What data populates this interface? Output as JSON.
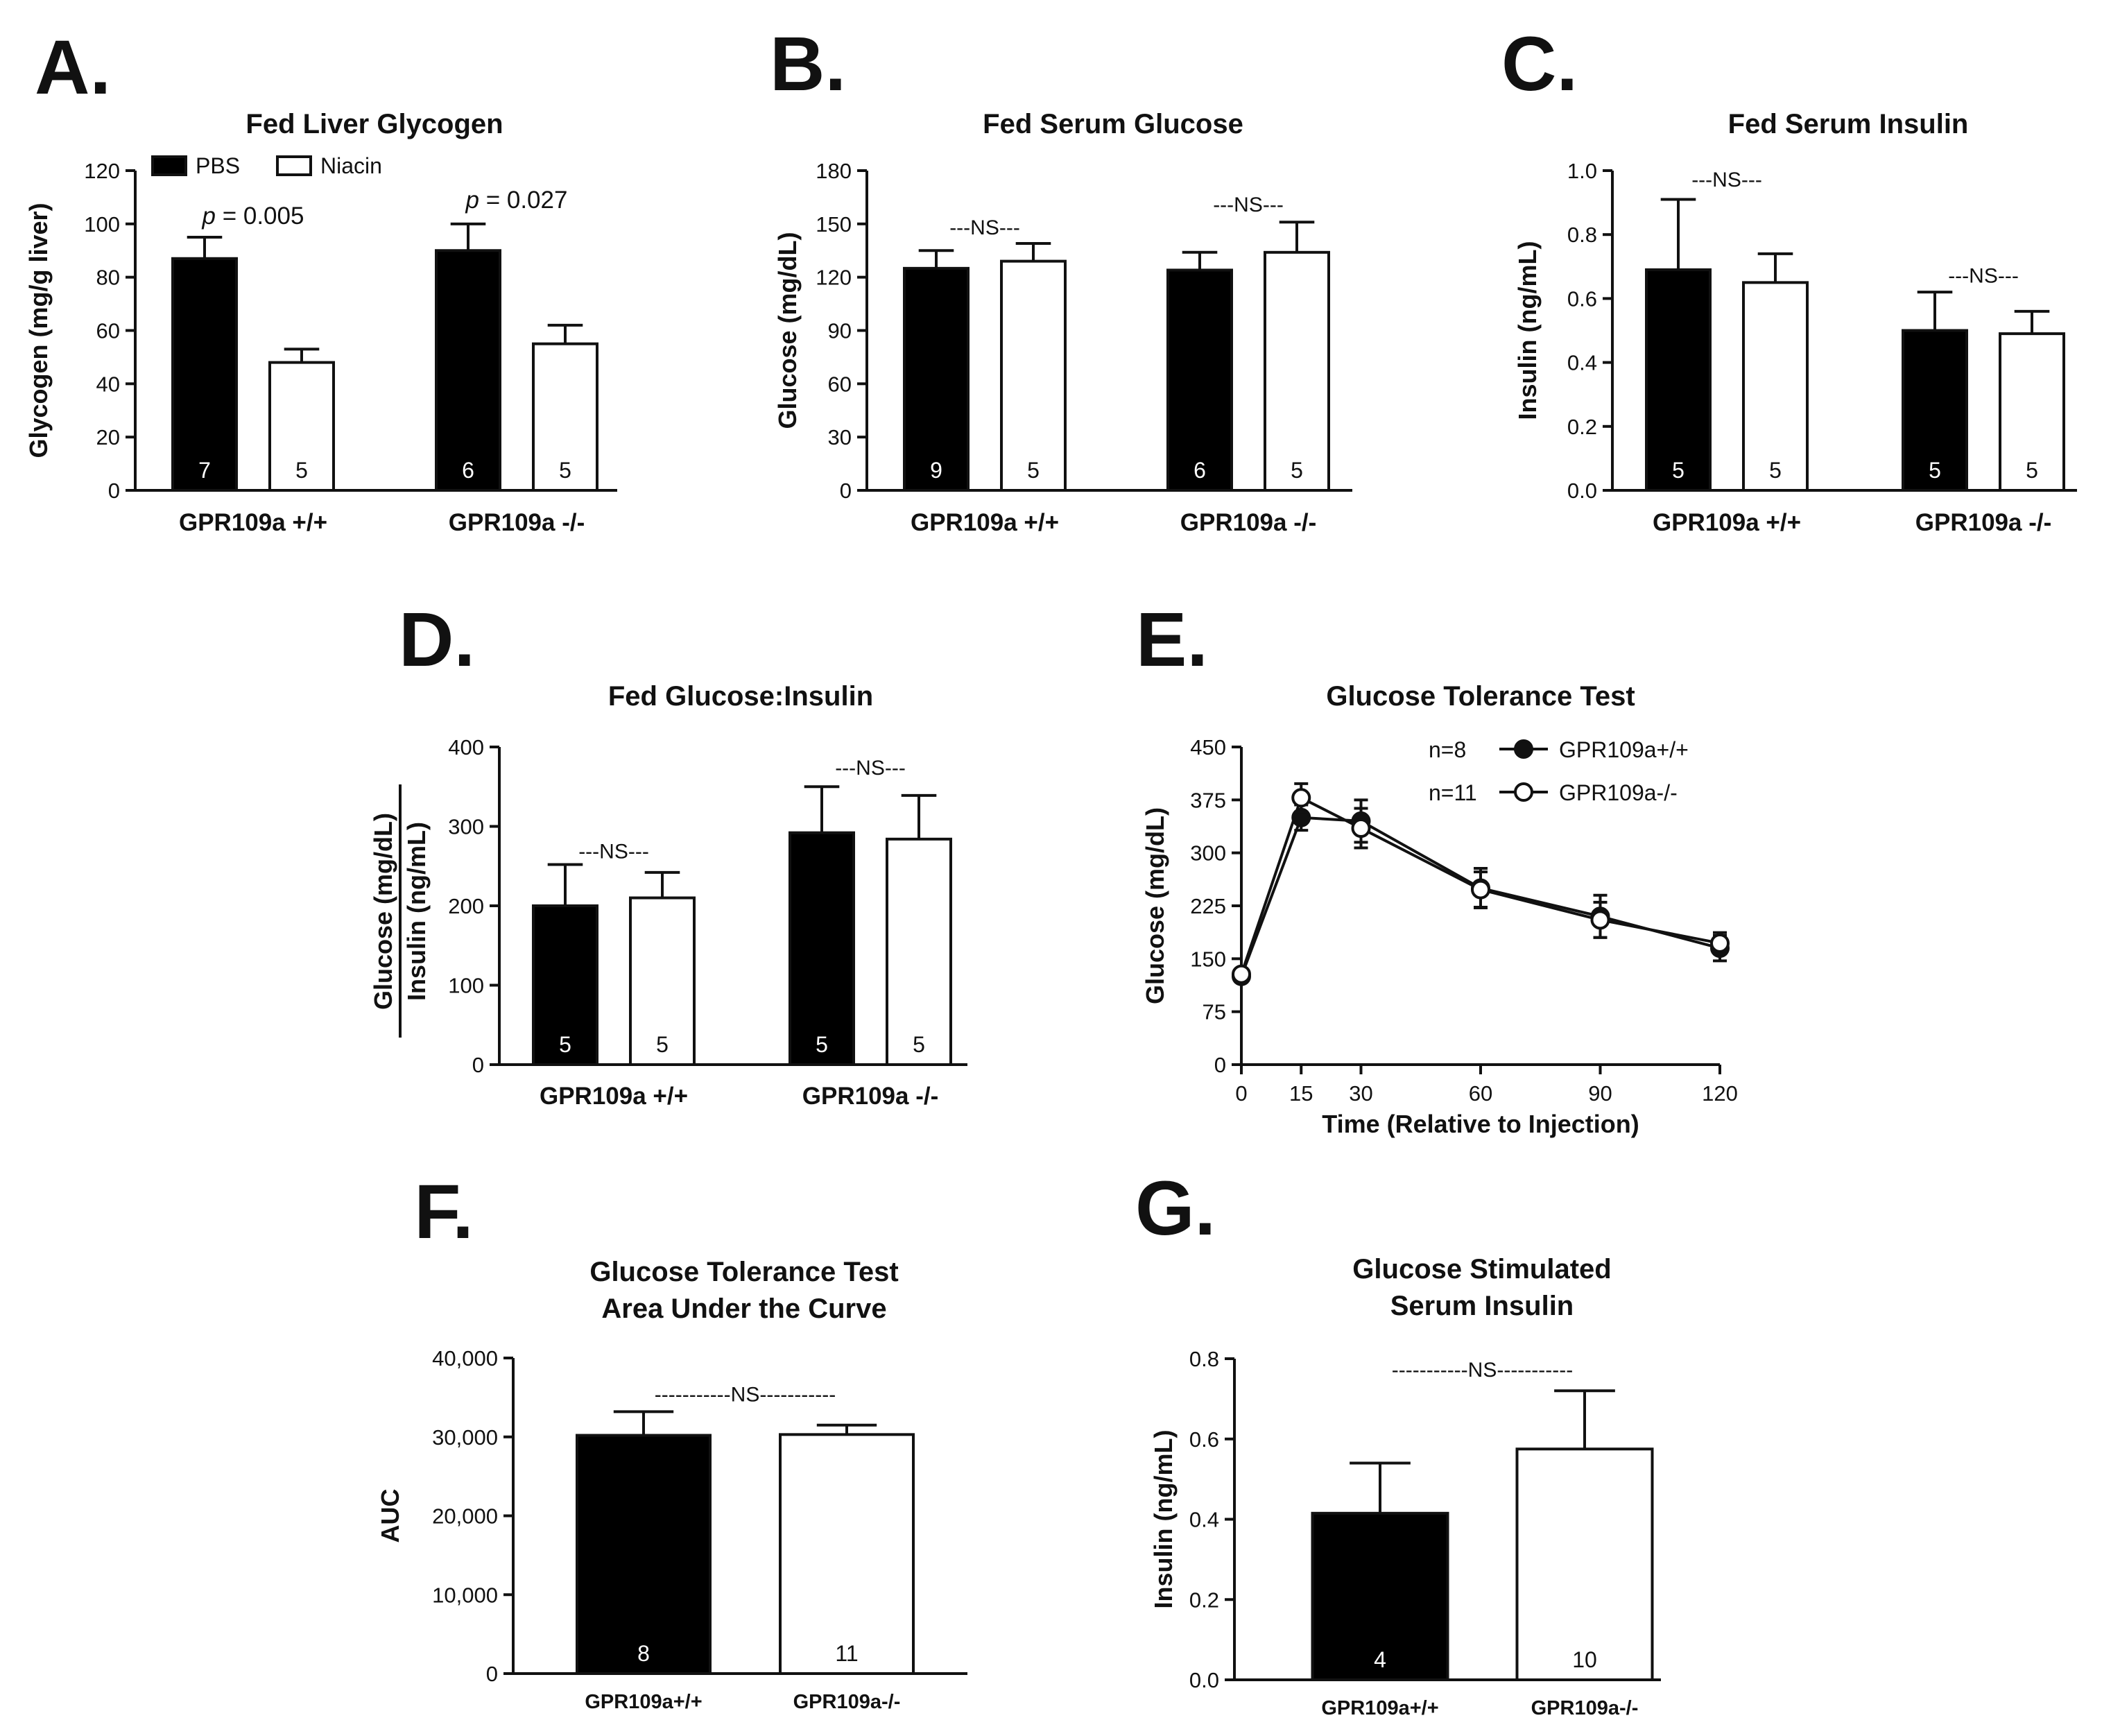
{
  "figure": {
    "letters": [
      "A.",
      "B.",
      "C.",
      "D.",
      "E.",
      "F.",
      "G."
    ]
  },
  "chart_data": [
    {
      "panel": "A.",
      "type": "bar",
      "title": "Fed Liver Glycogen",
      "ylabel": "Glycogen (mg/g liver)",
      "ylim": [
        0,
        120
      ],
      "yticks": [
        "0",
        "20",
        "40",
        "60",
        "80",
        "100",
        "120"
      ],
      "categories": [
        "GPR109a +/+",
        "GPR109a -/-"
      ],
      "legend": {
        "placement": "top-left",
        "entries": [
          {
            "name": "PBS",
            "fill": "#000000"
          },
          {
            "name": "Niacin",
            "fill": "#ffffff"
          }
        ]
      },
      "series": [
        {
          "name": "PBS",
          "fill": "#000000",
          "values": [
            87,
            90
          ],
          "errors": [
            8,
            10
          ],
          "n": [
            "7",
            "6"
          ]
        },
        {
          "name": "Niacin",
          "fill": "#ffffff",
          "values": [
            48,
            55
          ],
          "errors": [
            5,
            7
          ],
          "n": [
            "5",
            "5"
          ]
        }
      ],
      "annotations": [
        {
          "category": 0,
          "italic": "p",
          "text": " = 0.005",
          "y": 100
        },
        {
          "category": 1,
          "italic": "p",
          "text": " = 0.027",
          "y": 106
        }
      ]
    },
    {
      "panel": "B.",
      "type": "bar",
      "title": "Fed Serum Glucose",
      "ylabel": "Glucose (mg/dL)",
      "ylim": [
        0,
        180
      ],
      "yticks": [
        "0",
        "30",
        "60",
        "90",
        "120",
        "150",
        "180"
      ],
      "categories": [
        "GPR109a +/+",
        "GPR109a -/-"
      ],
      "series": [
        {
          "name": "PBS",
          "fill": "#000000",
          "values": [
            125,
            124
          ],
          "errors": [
            10,
            10
          ],
          "n": [
            "9",
            "6"
          ]
        },
        {
          "name": "Niacin",
          "fill": "#ffffff",
          "values": [
            129,
            134
          ],
          "errors": [
            10,
            17
          ],
          "n": [
            "5",
            "5"
          ]
        }
      ],
      "annotations": [
        {
          "category": 0,
          "text": "---NS---",
          "y": 144
        },
        {
          "category": 1,
          "text": "---NS---",
          "y": 157
        }
      ]
    },
    {
      "panel": "C.",
      "type": "bar",
      "title": "Fed Serum Insulin",
      "ylabel": "Insulin (ng/mL)",
      "ylim": [
        0,
        1.0
      ],
      "yticks": [
        "0.0",
        "0.2",
        "0.4",
        "0.6",
        "0.8",
        "1.0"
      ],
      "categories": [
        "GPR109a +/+",
        "GPR109a -/-"
      ],
      "series": [
        {
          "name": "PBS",
          "fill": "#000000",
          "values": [
            0.69,
            0.5
          ],
          "errors": [
            0.22,
            0.12
          ],
          "n": [
            "5",
            "5"
          ]
        },
        {
          "name": "Niacin",
          "fill": "#ffffff",
          "values": [
            0.65,
            0.49
          ],
          "errors": [
            0.09,
            0.07
          ],
          "n": [
            "5",
            "5"
          ]
        }
      ],
      "annotations": [
        {
          "category": 0,
          "text": "---NS---",
          "y": 0.95
        },
        {
          "category": 1,
          "text": "---NS---",
          "y": 0.65
        }
      ]
    },
    {
      "panel": "D.",
      "type": "bar",
      "title": "Fed Glucose:Insulin",
      "ylabel_num": "Glucose (mg/dL)",
      "ylabel_den": "Insulin (ng/mL)",
      "ylim": [
        0,
        400
      ],
      "yticks": [
        "0",
        "100",
        "200",
        "300",
        "400"
      ],
      "categories": [
        "GPR109a +/+",
        "GPR109a -/-"
      ],
      "series": [
        {
          "name": "PBS",
          "fill": "#000000",
          "values": [
            200,
            292
          ],
          "errors": [
            52,
            58
          ],
          "n": [
            "5",
            "5"
          ]
        },
        {
          "name": "Niacin",
          "fill": "#ffffff",
          "values": [
            210,
            284
          ],
          "errors": [
            32,
            55
          ],
          "n": [
            "5",
            "5"
          ]
        }
      ],
      "annotations": [
        {
          "category": 0,
          "text": "---NS---",
          "y": 260
        },
        {
          "category": 1,
          "text": "---NS---",
          "y": 365
        }
      ]
    },
    {
      "panel": "E.",
      "type": "line",
      "title": "Glucose Tolerance Test",
      "ylabel": "Glucose (mg/dL)",
      "xlabel": "Time (Relative to Injection)",
      "xlim": [
        0,
        120
      ],
      "ylim": [
        0,
        450
      ],
      "xticks": [
        "0",
        "15",
        "30",
        "60",
        "90",
        "120"
      ],
      "yticks": [
        "0",
        "75",
        "150",
        "225",
        "300",
        "375",
        "450"
      ],
      "legend": {
        "placement": "top-right"
      },
      "series": [
        {
          "name": "GPR109a+/+",
          "n": "n=8",
          "marker": "filled",
          "x": [
            0,
            15,
            30,
            60,
            90,
            120
          ],
          "y": [
            125,
            350,
            345,
            250,
            210,
            165
          ],
          "errors": [
            8,
            18,
            30,
            28,
            30,
            18
          ]
        },
        {
          "name": "GPR109a-/-",
          "n": "n=11",
          "marker": "open",
          "x": [
            0,
            15,
            30,
            60,
            90,
            120
          ],
          "y": [
            128,
            378,
            335,
            248,
            205,
            172
          ],
          "errors": [
            8,
            20,
            28,
            25,
            25,
            15
          ]
        }
      ]
    },
    {
      "panel": "F.",
      "type": "bar",
      "title": "Glucose Tolerance Test",
      "subtitle": "Area Under the Curve",
      "ylabel": "AUC",
      "ylim": [
        0,
        40000
      ],
      "yticks": [
        "0",
        "10,000",
        "20,000",
        "30,000",
        "40,000"
      ],
      "categories": [
        "GPR109a+/+",
        "GPR109a-/-"
      ],
      "values": [
        30200,
        30300
      ],
      "errors": [
        3000,
        1200
      ],
      "fills": [
        "#000000",
        "#ffffff"
      ],
      "n": [
        "8",
        "11"
      ],
      "annotation": {
        "text": "-----------NS-----------",
        "y": 34500
      }
    },
    {
      "panel": "G.",
      "type": "bar",
      "title": "Glucose Stimulated",
      "subtitle": "Serum Insulin",
      "ylabel": "Insulin (ng/mL)",
      "ylim": [
        0,
        0.8
      ],
      "yticks": [
        "0.0",
        "0.2",
        "0.4",
        "0.6",
        "0.8"
      ],
      "categories": [
        "GPR109a+/+",
        "GPR109a-/-"
      ],
      "values": [
        0.415,
        0.575
      ],
      "errors": [
        0.125,
        0.145
      ],
      "fills": [
        "#000000",
        "#ffffff"
      ],
      "n": [
        "4",
        "10"
      ],
      "annotation": {
        "text": "-----------NS-----------",
        "y": 0.755
      }
    }
  ]
}
